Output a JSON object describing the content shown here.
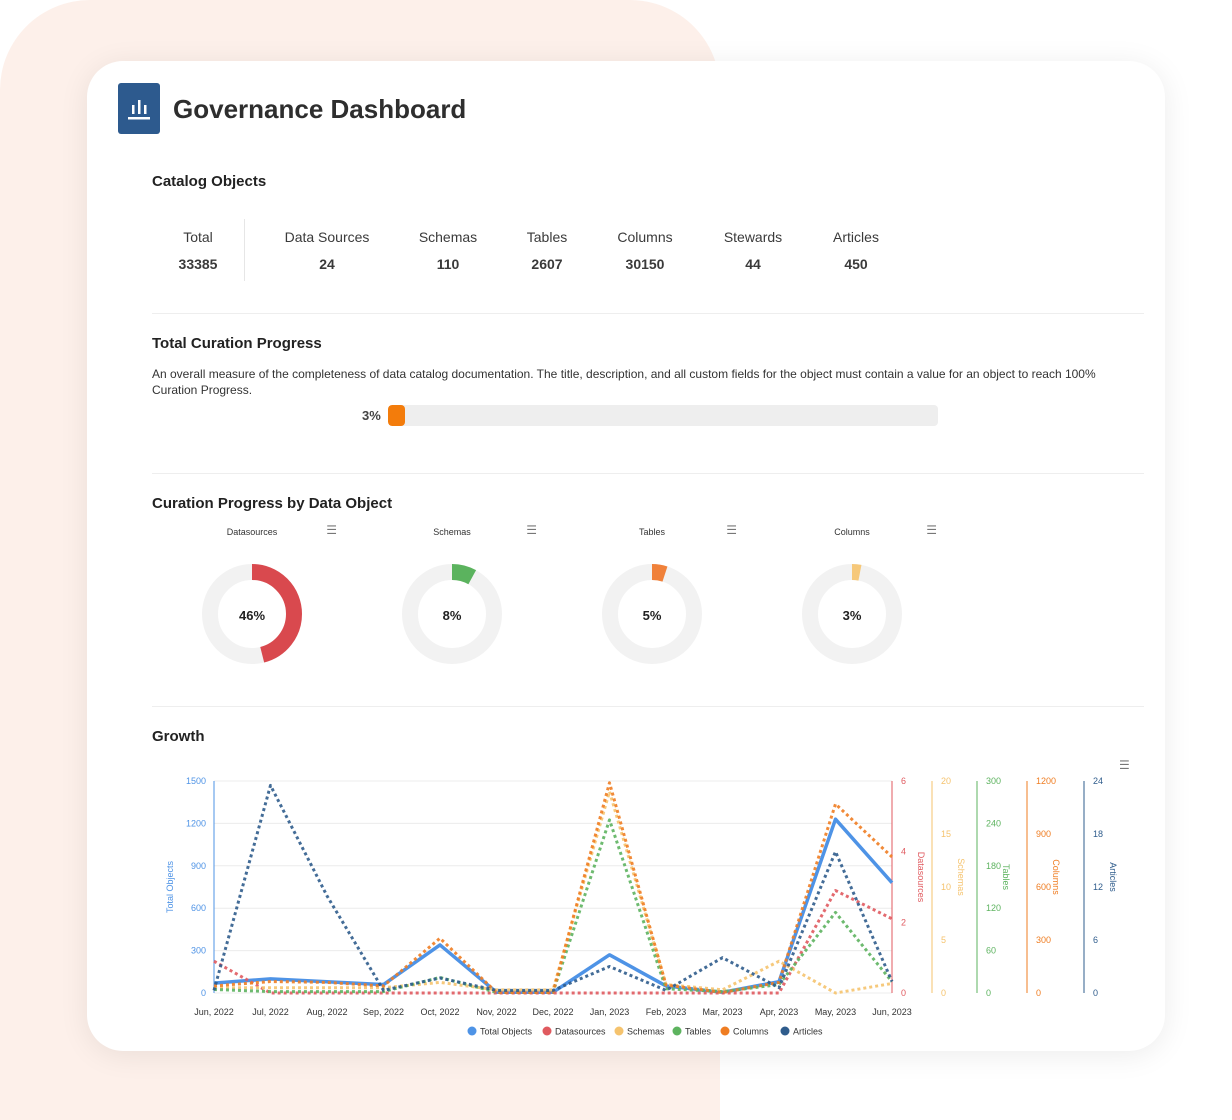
{
  "header": {
    "title": "Governance Dashboard",
    "logo_icon": "bar-chart-icon"
  },
  "catalog": {
    "title": "Catalog Objects",
    "stats": [
      {
        "label": "Total",
        "value": "33385"
      },
      {
        "label": "Data Sources",
        "value": "24"
      },
      {
        "label": "Schemas",
        "value": "110"
      },
      {
        "label": "Tables",
        "value": "2607"
      },
      {
        "label": "Columns",
        "value": "30150"
      },
      {
        "label": "Stewards",
        "value": "44"
      },
      {
        "label": "Articles",
        "value": "450"
      }
    ]
  },
  "curation": {
    "title": "Total Curation Progress",
    "description": "An overall measure of the completeness of data catalog documentation. The title, description, and all custom fields for the object must contain a value for an object to reach 100% Curation Progress.",
    "progress_label": "3%",
    "progress": 0.03,
    "bar_color": "#f37c0b"
  },
  "by_object": {
    "title": "Curation Progress by Data Object",
    "menu_icon": "hamburger-menu-icon",
    "items": [
      {
        "title": "Datasources",
        "label": "46%",
        "value": 0.46,
        "color": "#d9494e"
      },
      {
        "title": "Schemas",
        "label": "8%",
        "value": 0.08,
        "color": "#5bb35e"
      },
      {
        "title": "Tables",
        "label": "5%",
        "value": 0.05,
        "color": "#f0813a"
      },
      {
        "title": "Columns",
        "label": "3%",
        "value": 0.03,
        "color": "#f6c87a"
      }
    ]
  },
  "growth": {
    "title": "Growth",
    "menu_icon": "hamburger-menu-icon"
  },
  "chart_data": {
    "type": "line",
    "categories": [
      "Jun, 2022",
      "Jul, 2022",
      "Aug, 2022",
      "Sep, 2022",
      "Oct, 2022",
      "Nov, 2022",
      "Dec, 2022",
      "Jan, 2023",
      "Feb, 2023",
      "Mar, 2023",
      "Apr, 2023",
      "May, 2023",
      "Jun, 2023"
    ],
    "axes": [
      {
        "name": "Total Objects",
        "ticks": [
          "0",
          "300",
          "600",
          "900",
          "1200",
          "1500"
        ],
        "max": 1500,
        "color": "#4e93e6"
      },
      {
        "name": "Datasources",
        "ticks": [
          "0",
          "2",
          "4",
          "6"
        ],
        "max": 6,
        "color": "#e05a5f"
      },
      {
        "name": "Schemas",
        "ticks": [
          "0",
          "5",
          "10",
          "15",
          "20"
        ],
        "max": 20,
        "color": "#f5c36e"
      },
      {
        "name": "Tables",
        "ticks": [
          "0",
          "60",
          "120",
          "180",
          "240",
          "300"
        ],
        "max": 300,
        "color": "#5db35f"
      },
      {
        "name": "Columns",
        "ticks": [
          "0",
          "300",
          "600",
          "900",
          "1200"
        ],
        "max": 1200,
        "color": "#ef7d22"
      },
      {
        "name": "Articles",
        "ticks": [
          "0",
          "6",
          "12",
          "18",
          "24"
        ],
        "max": 24,
        "color": "#2f5c8c"
      }
    ],
    "series": [
      {
        "name": "Total Objects",
        "axis": 0,
        "dashed": false,
        "values": [
          70,
          100,
          80,
          60,
          340,
          5,
          5,
          270,
          50,
          5,
          80,
          1230,
          780
        ]
      },
      {
        "name": "Datasources",
        "axis": 1,
        "dashed": true,
        "values": [
          0.9,
          0,
          0,
          0,
          0,
          0,
          0,
          0,
          0,
          0,
          0,
          2.9,
          2.1
        ]
      },
      {
        "name": "Schemas",
        "axis": 2,
        "dashed": true,
        "values": [
          0.5,
          0.5,
          0.5,
          0.5,
          1,
          0.3,
          0.3,
          19,
          0.8,
          0.3,
          3,
          0,
          0.9
        ]
      },
      {
        "name": "Tables",
        "axis": 3,
        "dashed": true,
        "values": [
          5,
          2,
          2,
          2,
          22,
          1,
          1,
          245,
          6,
          2,
          12,
          114,
          16
        ]
      },
      {
        "name": "Columns",
        "axis": 4,
        "dashed": true,
        "values": [
          40,
          65,
          60,
          40,
          310,
          3,
          3,
          1190,
          45,
          3,
          60,
          1070,
          770
        ]
      },
      {
        "name": "Articles",
        "axis": 5,
        "dashed": true,
        "values": [
          0.3,
          23.5,
          11,
          0.3,
          1.7,
          0.3,
          0.3,
          3,
          0.3,
          4,
          0.6,
          16,
          1.3
        ]
      }
    ]
  }
}
